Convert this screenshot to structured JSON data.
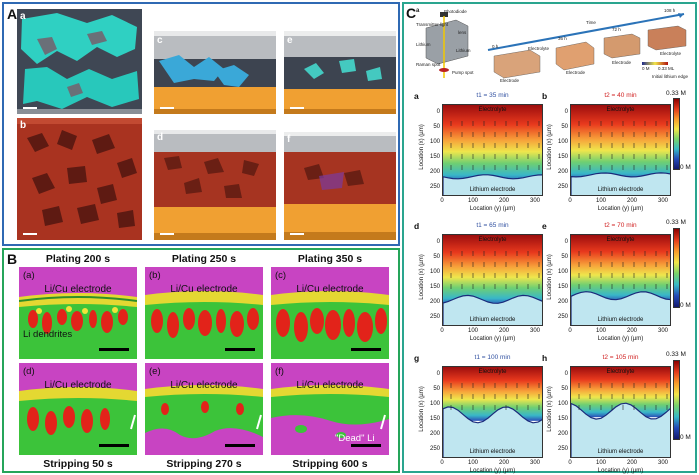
{
  "panel_a": {
    "letter": "A",
    "tiles": [
      {
        "label": "a",
        "color": "#2ed1c4"
      },
      {
        "label": "b",
        "color": "#b5321f"
      },
      {
        "label": "c",
        "color": "#3fa9d6"
      },
      {
        "label": "d",
        "color": "#b0432c"
      },
      {
        "label": "e",
        "color": "#44c9c0"
      },
      {
        "label": "f",
        "color": "#b0432c"
      }
    ]
  },
  "panel_b": {
    "letter": "B",
    "top_headers": [
      "Plating 200 s",
      "Plating 250 s",
      "Plating 350 s"
    ],
    "bottom_headers": [
      "Stripping 50 s",
      "Stripping 270 s",
      "Stripping 600 s"
    ],
    "sub_labels": [
      "(a)",
      "(b)",
      "(c)",
      "(d)",
      "(e)",
      "(f)"
    ],
    "electrode_label": "Li/Cu electrode",
    "dendrite_label": "Li dendrites",
    "dead_li_label": "\"Dead\" Li"
  },
  "panel_c": {
    "letter": "C",
    "schematic": {
      "sub_label": "a",
      "labels": [
        "Photodiode",
        "Transmitter light",
        "lens",
        "Lithium",
        "Lithium",
        "Raman spot",
        "Pump spot",
        "Electrolyte",
        "Electrode",
        "Electrode",
        "Electrode",
        "Electrolyte"
      ],
      "times": [
        "0 h",
        "36 h",
        "72 h",
        "108 h"
      ],
      "time_axis": "Time",
      "legend_range": [
        "0 M",
        "0.33 ML"
      ],
      "legend_note": "Initial lithium edge"
    },
    "heatmaps": [
      {
        "letter": "a",
        "title": "t1 = 35 min",
        "red": false
      },
      {
        "letter": "b",
        "title": "t2 = 40 min",
        "red": true
      },
      {
        "letter": "d",
        "title": "t1 = 65 min",
        "red": false
      },
      {
        "letter": "e",
        "title": "t2 = 70 min",
        "red": true
      },
      {
        "letter": "g",
        "title": "t1 = 100 min",
        "red": false
      },
      {
        "letter": "h",
        "title": "t2 = 105 min",
        "red": true
      }
    ],
    "y_ticks": [
      "0",
      "50",
      "100",
      "150",
      "200",
      "250"
    ],
    "x_ticks": [
      "0",
      "100",
      "200",
      "300"
    ],
    "x_label": "Location (y) (µm)",
    "y_label": "Location (x) (µm)",
    "electrolyte_label": "Electrolyte",
    "electrode_label": "Lithium electrode",
    "colorbar_max": "0.33 M",
    "colorbar_min": "0 M"
  }
}
